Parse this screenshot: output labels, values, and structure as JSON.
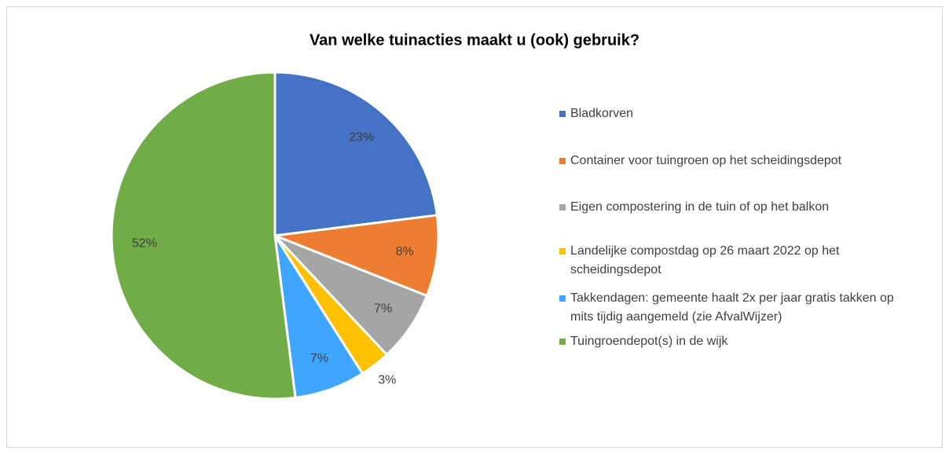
{
  "chart_data": {
    "type": "pie",
    "title": "Van welke tuinacties maakt u (ook) gebruik?",
    "categories": [
      "Bladkorven",
      "Container voor tuingroen op het scheidingsdepot",
      "Eigen compostering in de tuin of op het balkon",
      "Landelijke compostdag op 26 maart 2022 op het scheidingsdepot",
      "Takkendagen: gemeente haalt 2x per jaar gratis takken op mits tijdig aangemeld (zie AfvalWijzer)",
      "Tuingroendepot(s) in de wijk"
    ],
    "values": [
      23,
      8,
      7,
      3,
      7,
      52
    ],
    "value_labels": [
      "23%",
      "8%",
      "7%",
      "3%",
      "7%",
      "52%"
    ],
    "colors": [
      "#4472c4",
      "#ed7d31",
      "#a5a5a5",
      "#ffc000",
      "#3ea6ff",
      "#70ad47"
    ],
    "legend": "right"
  }
}
